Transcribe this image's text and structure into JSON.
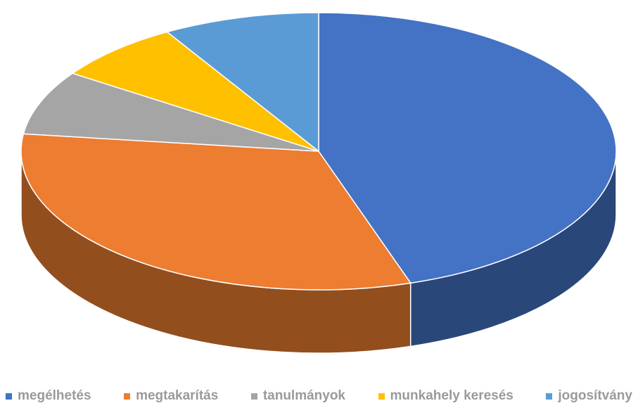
{
  "chart_data": {
    "type": "pie",
    "style": "3d",
    "categories": [
      "megélhetés",
      "megtakarítás",
      "tanulmányok",
      "munkahely keresés",
      "jogosítvány"
    ],
    "values": [
      45,
      32,
      7.5,
      7,
      8.5
    ],
    "colors": [
      "#4472C4",
      "#ED7D31",
      "#A5A5A5",
      "#FFC000",
      "#5B9BD5"
    ],
    "legend_position": "bottom"
  }
}
